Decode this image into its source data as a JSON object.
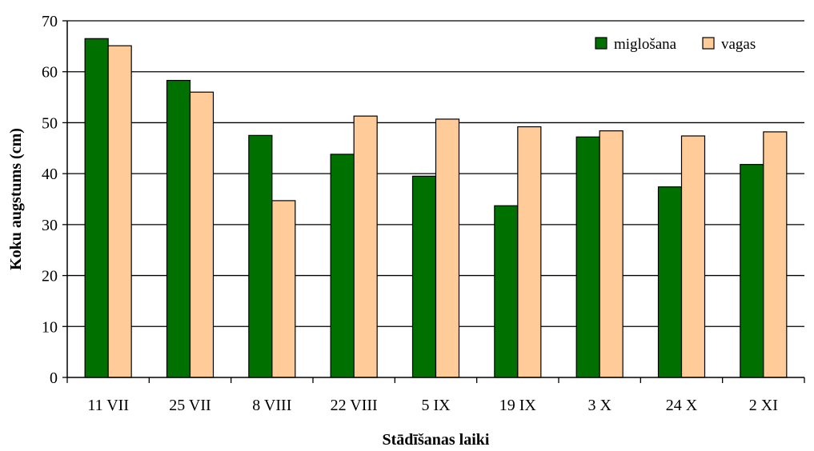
{
  "chart_data": {
    "type": "bar",
    "xlabel": "Stādīšanas laiki",
    "ylabel": "Koku augstums (cm)",
    "ylim": [
      0,
      70
    ],
    "yticks": [
      0,
      10,
      20,
      30,
      40,
      50,
      60,
      70
    ],
    "grid": true,
    "legend_position": "top-right",
    "categories": [
      "11 VII",
      "25 VII",
      "8 VIII",
      "22 VIII",
      "5 IX",
      "19 IX",
      "3 X",
      "24 X",
      "2 XI"
    ],
    "series": [
      {
        "name": "miglošana",
        "color": "#007000",
        "values": [
          66.5,
          58.3,
          47.5,
          43.8,
          39.5,
          33.7,
          47.2,
          37.4,
          41.8
        ]
      },
      {
        "name": "vagas",
        "color": "#FFCC99",
        "values": [
          65.1,
          56.0,
          34.7,
          51.3,
          50.7,
          49.2,
          48.4,
          47.4,
          48.2
        ]
      }
    ]
  }
}
